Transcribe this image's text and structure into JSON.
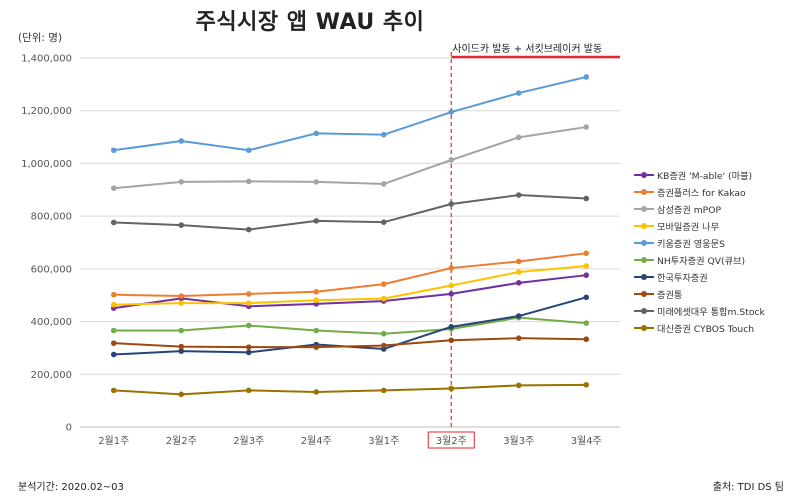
{
  "header": {
    "title": "주식시장 앱 WAU 추이",
    "unit": "(단위: 명)"
  },
  "footer": {
    "period": "분석기간: 2020.02~03",
    "source": "출처: TDI DS 팀"
  },
  "chart_data": {
    "type": "line",
    "title": "주식시장 앱 WAU 추이",
    "xlabel": "",
    "ylabel": "(단위: 명)",
    "categories": [
      "2월1주",
      "2월2주",
      "2월3주",
      "2월4주",
      "3월1주",
      "3월2주",
      "3월3주",
      "3월4주"
    ],
    "ylim": [
      0,
      1400000
    ],
    "yticks": [
      0,
      200000,
      400000,
      600000,
      800000,
      1000000,
      1200000,
      1400000
    ],
    "ytick_labels": [
      "0",
      "200,000",
      "400,000",
      "600,000",
      "800,000",
      "1,000,000",
      "1,200,000",
      "1,400,000"
    ],
    "grid": true,
    "legend_position": "right",
    "highlight_category": "3월2주",
    "annotation": {
      "category": "3월2주",
      "text": "사이드카 발동 + 서킷브레이커 발동",
      "line_color": "#e8262b"
    },
    "series": [
      {
        "name": "KB증권 'M-able' (마블)",
        "color": "#7030a0",
        "values": [
          451000,
          488000,
          458000,
          467000,
          478000,
          505000,
          547000,
          576000
        ]
      },
      {
        "name": "증권플러스 for Kakao",
        "color": "#ed7d31",
        "values": [
          502000,
          497000,
          505000,
          513000,
          542000,
          603000,
          628000,
          659000
        ]
      },
      {
        "name": "삼성증권 mPOP",
        "color": "#a5a5a5",
        "values": [
          906000,
          930000,
          932000,
          930000,
          922000,
          1013000,
          1099000,
          1138000
        ]
      },
      {
        "name": "모바일증권 나무",
        "color": "#ffc000",
        "values": [
          464000,
          470000,
          470000,
          481000,
          487000,
          537000,
          588000,
          611000
        ]
      },
      {
        "name": "키움증권 영웅문S",
        "color": "#5b9bd5",
        "values": [
          1050000,
          1085000,
          1050000,
          1114000,
          1109000,
          1195000,
          1267000,
          1328000
        ]
      },
      {
        "name": "NH투자증권 QV(큐브)",
        "color": "#70ad47",
        "values": [
          366000,
          366000,
          385000,
          366000,
          354000,
          372000,
          415000,
          394000
        ]
      },
      {
        "name": "한국투자증권",
        "color": "#264478",
        "values": [
          275000,
          288000,
          283000,
          313000,
          296000,
          380000,
          421000,
          492000
        ]
      },
      {
        "name": "증권통",
        "color": "#9e480e",
        "values": [
          318000,
          305000,
          303000,
          303000,
          309000,
          329000,
          337000,
          333000
        ]
      },
      {
        "name": "미래에셋대우 통합m.Stock",
        "color": "#636363",
        "values": [
          776000,
          766000,
          749000,
          782000,
          777000,
          846000,
          880000,
          867000
        ]
      },
      {
        "name": "대신증권 CYBOS Touch",
        "color": "#997300",
        "values": [
          139000,
          124000,
          139000,
          133000,
          139000,
          146000,
          158000,
          160000
        ]
      }
    ]
  }
}
